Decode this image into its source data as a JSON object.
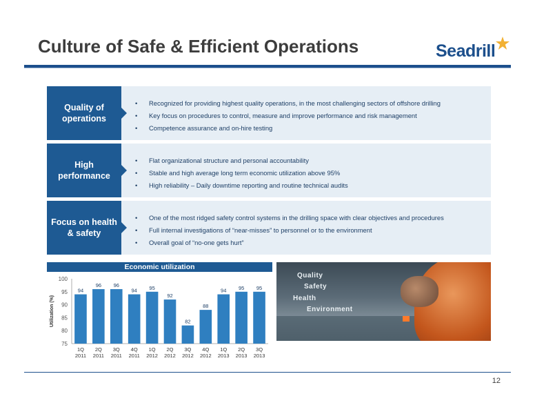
{
  "title": "Culture of Safe & Efficient Operations",
  "logo": {
    "text": "Seadrill"
  },
  "rows": [
    {
      "label": "Quality of operations",
      "bullets": [
        "Recognized for providing highest quality operations, in the most challenging sectors of offshore drilling",
        "Key focus on procedures to control, measure and improve performance and risk management",
        "Competence assurance and on-hire testing"
      ]
    },
    {
      "label": "High performance",
      "bullets": [
        "Flat organizational structure and personal accountability",
        "Stable and high average long term economic utilization above 95%",
        "High reliability – Daily downtime reporting and routine technical audits"
      ]
    },
    {
      "label": "Focus on health & safety",
      "bullets": [
        "One of the most ridged safety control systems in the drilling space with clear objectives and procedures",
        "Full internal investigations of “near-misses” to personnel or to the environment",
        "Overall goal of “no-one gets hurt”"
      ]
    }
  ],
  "photo_words": [
    "Quality",
    "Safety",
    "Health",
    "Environment"
  ],
  "page_number": "12",
  "colors": {
    "brand": "#1e5a93",
    "panel": "#e6eef5",
    "bar": "#2f7fc0",
    "text_blue": "#1e3f66"
  },
  "chart_data": {
    "type": "bar",
    "title": "Economic utilization",
    "ylabel": "Utilization (%)",
    "xlabel": "",
    "categories": [
      [
        "1Q",
        "2011"
      ],
      [
        "2Q",
        "2011"
      ],
      [
        "3Q",
        "2011"
      ],
      [
        "4Q",
        "2011"
      ],
      [
        "1Q",
        "2012"
      ],
      [
        "2Q",
        "2012"
      ],
      [
        "3Q",
        "2012"
      ],
      [
        "4Q",
        "2012"
      ],
      [
        "1Q",
        "2013"
      ],
      [
        "2Q",
        "2013"
      ],
      [
        "3Q",
        "2013"
      ]
    ],
    "values": [
      94,
      96,
      96,
      94,
      95,
      92,
      82,
      88,
      94,
      95,
      95
    ],
    "ylim": [
      75,
      100
    ],
    "yticks": [
      75,
      80,
      85,
      90,
      95,
      100
    ],
    "grid": false,
    "legend": "none"
  }
}
